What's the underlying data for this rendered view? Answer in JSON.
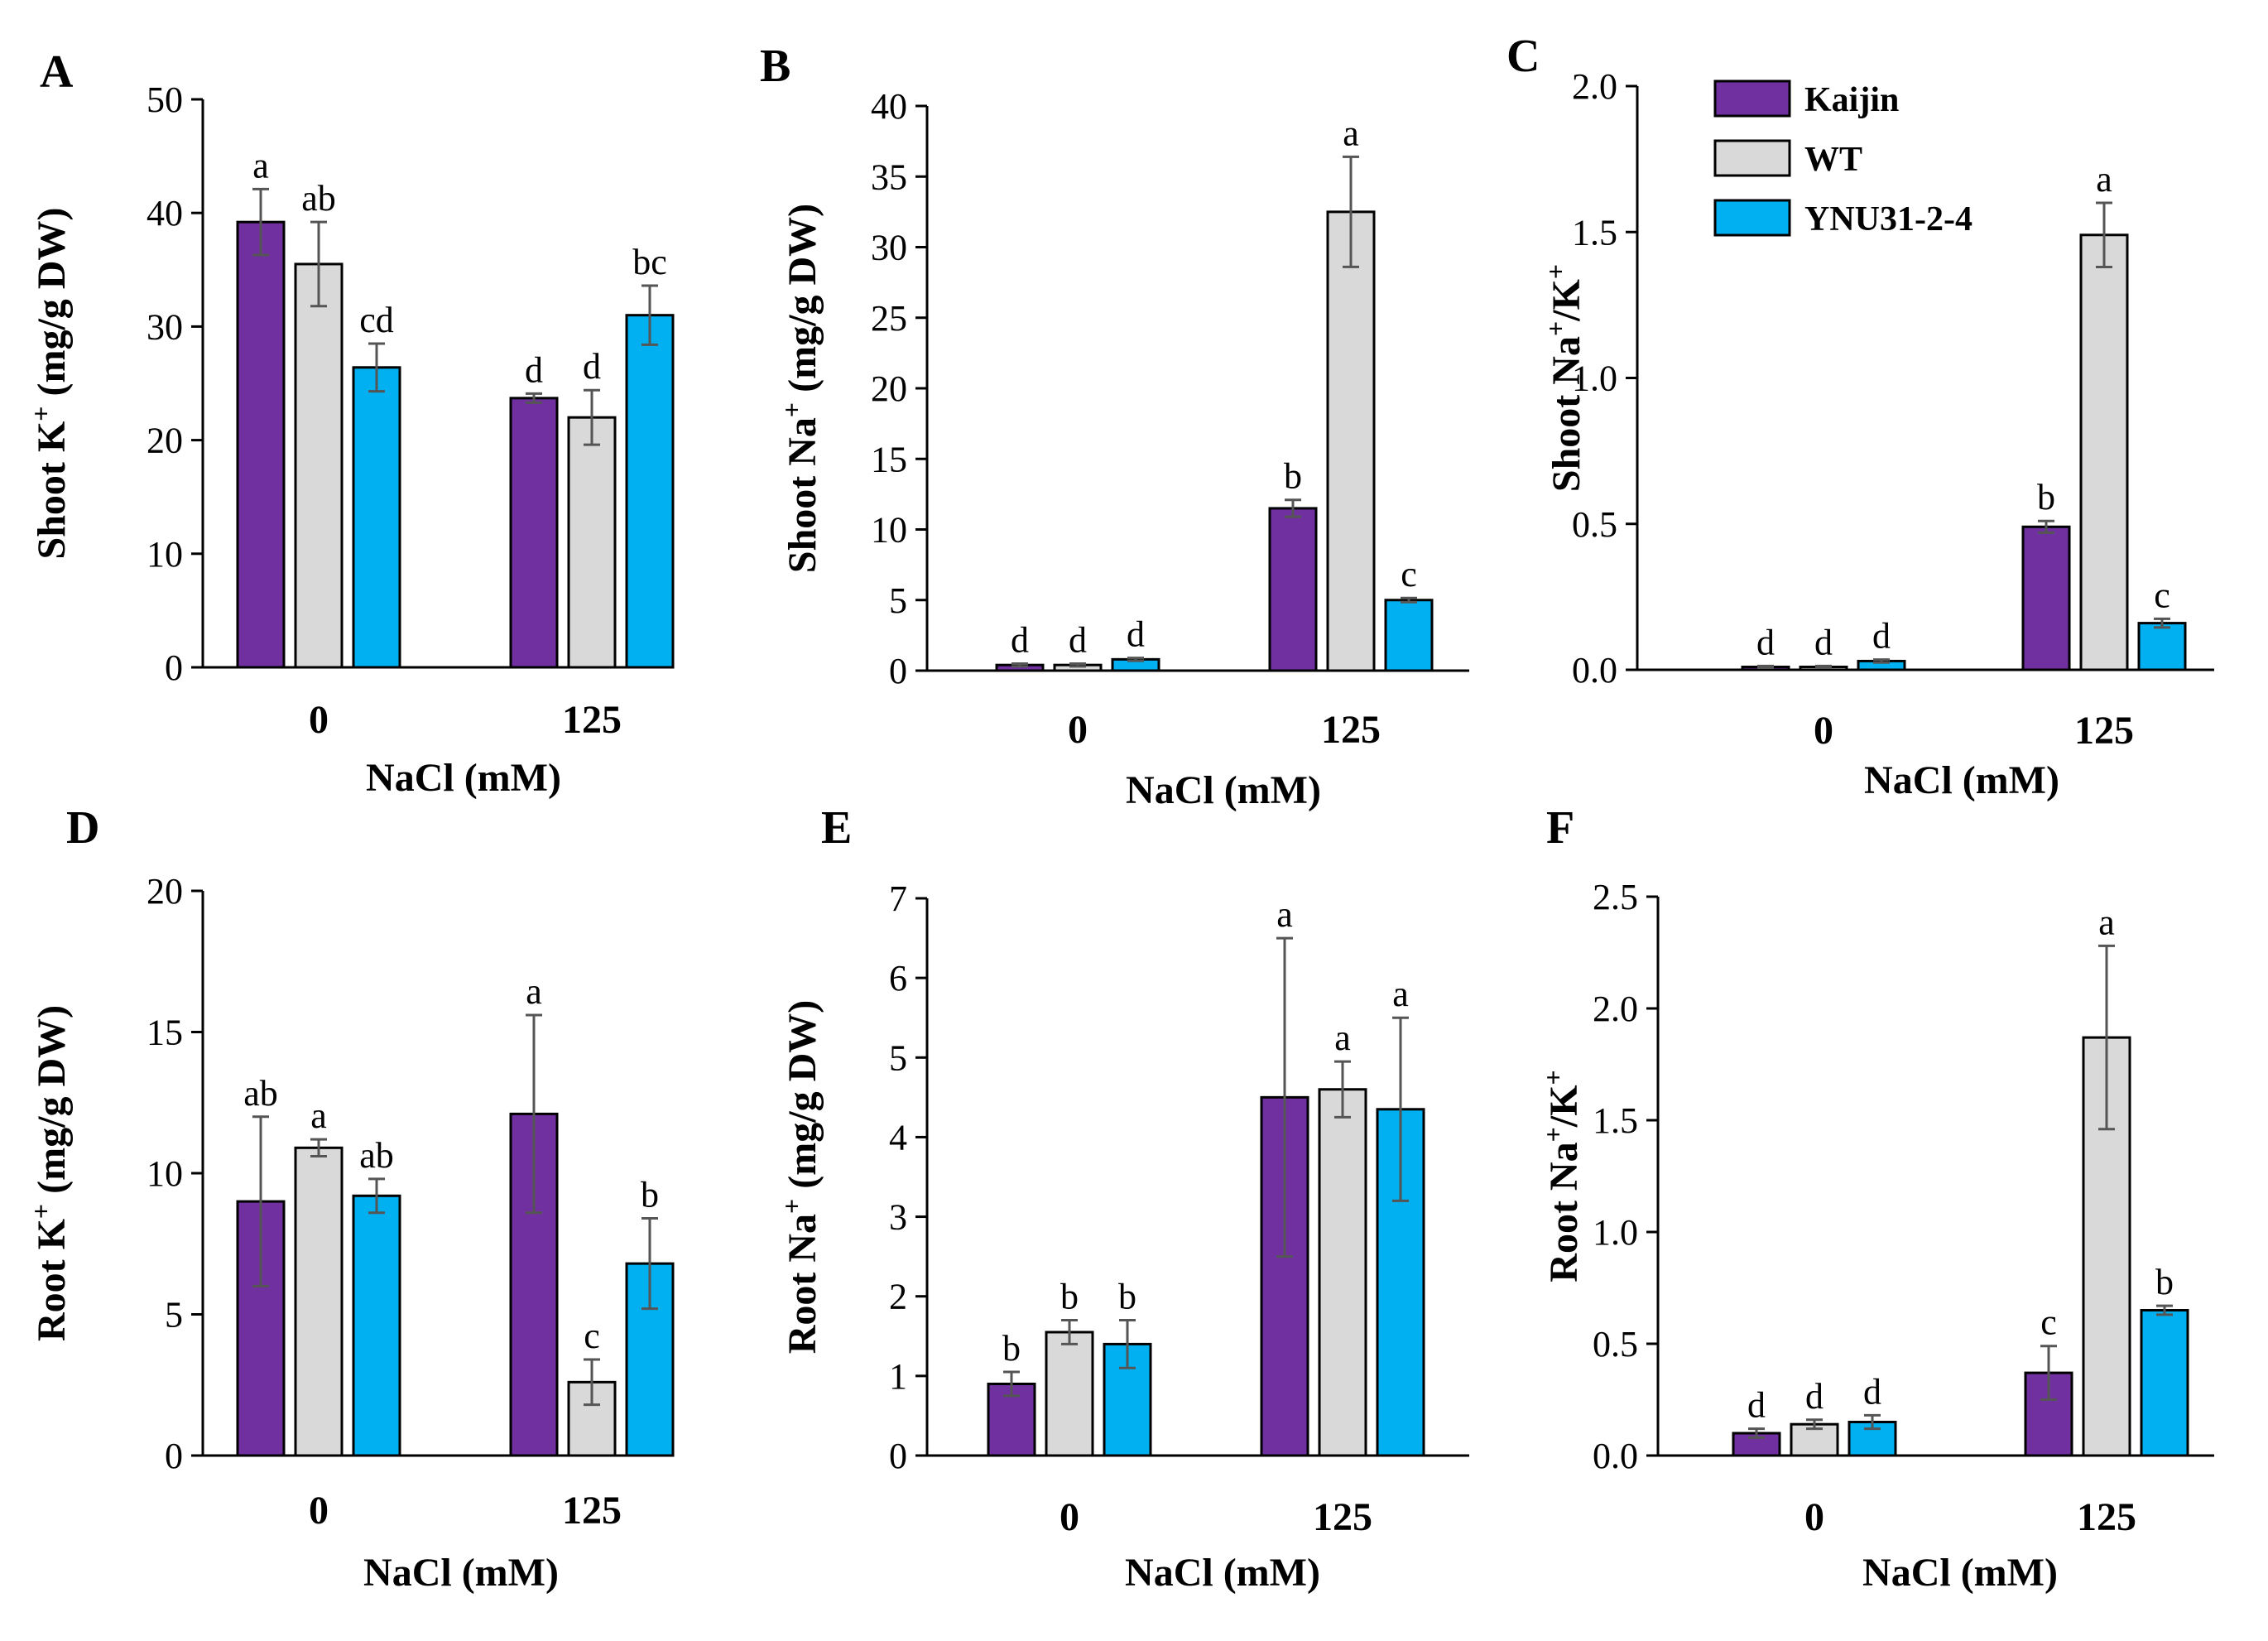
{
  "colors": {
    "Kaijin": "#7030a0",
    "WT": "#d9d9d9",
    "YNU31-2-4": "#00b0f0"
  },
  "legend": {
    "series": [
      "Kaijin",
      "WT",
      "YNU31-2-4"
    ]
  },
  "chart_data": [
    {
      "panel": "A",
      "type": "bar",
      "title": "",
      "ylabel_base": "Shoot K",
      "ylabel_sup": "+",
      "ylabel_unit": " (mg/g DW)",
      "xlabel": "NaCl (mM)",
      "categories": [
        "0",
        "125"
      ],
      "ylim": [
        0,
        50
      ],
      "yticks": [
        "0",
        "10",
        "20",
        "30",
        "40",
        "50"
      ],
      "series": [
        {
          "name": "Kaijin",
          "values": [
            39.2,
            23.7
          ],
          "errors": [
            2.9,
            0.4
          ],
          "letters": [
            "a",
            "d"
          ]
        },
        {
          "name": "WT",
          "values": [
            35.5,
            22.0
          ],
          "errors": [
            3.7,
            2.4
          ],
          "letters": [
            "ab",
            "d"
          ]
        },
        {
          "name": "YNU31-2-4",
          "values": [
            26.4,
            31.0
          ],
          "errors": [
            2.1,
            2.6
          ],
          "letters": [
            "cd",
            "bc"
          ]
        }
      ]
    },
    {
      "panel": "B",
      "type": "bar",
      "title": "",
      "ylabel_base": "Shoot Na",
      "ylabel_sup": "+",
      "ylabel_unit": " (mg/g DW)",
      "xlabel": "NaCl (mM)",
      "categories": [
        "0",
        "125"
      ],
      "ylim": [
        0,
        40
      ],
      "yticks": [
        "0",
        "5",
        "10",
        "15",
        "20",
        "25",
        "30",
        "35",
        "40"
      ],
      "series": [
        {
          "name": "Kaijin",
          "values": [
            0.4,
            11.5
          ],
          "errors": [
            0.1,
            0.6
          ],
          "letters": [
            "d",
            "b"
          ]
        },
        {
          "name": "WT",
          "values": [
            0.4,
            32.5
          ],
          "errors": [
            0.1,
            3.9
          ],
          "letters": [
            "d",
            "a"
          ]
        },
        {
          "name": "YNU31-2-4",
          "values": [
            0.8,
            5.0
          ],
          "errors": [
            0.1,
            0.15
          ],
          "letters": [
            "d",
            "c"
          ]
        }
      ]
    },
    {
      "panel": "C",
      "type": "bar",
      "title": "",
      "ylabel_base": "Shoot Na",
      "ylabel_sup": "+",
      "ylabel_unit": "/K",
      "ylabel_sup2": "+",
      "xlabel": "NaCl (mM)",
      "categories": [
        "0",
        "125"
      ],
      "ylim": [
        0,
        2.0
      ],
      "yticks": [
        "0.0",
        "0.5",
        "1.0",
        "1.5",
        "2.0"
      ],
      "series": [
        {
          "name": "Kaijin",
          "values": [
            0.01,
            0.49
          ],
          "errors": [
            0.003,
            0.02
          ],
          "letters": [
            "d",
            "b"
          ]
        },
        {
          "name": "WT",
          "values": [
            0.01,
            1.49
          ],
          "errors": [
            0.003,
            0.11
          ],
          "letters": [
            "d",
            "a"
          ]
        },
        {
          "name": "YNU31-2-4",
          "values": [
            0.03,
            0.16
          ],
          "errors": [
            0.005,
            0.015
          ],
          "letters": [
            "d",
            "c"
          ]
        }
      ]
    },
    {
      "panel": "D",
      "type": "bar",
      "title": "",
      "ylabel_base": "Root K",
      "ylabel_sup": "+",
      "ylabel_unit": " (mg/g DW)",
      "xlabel": "NaCl (mM)",
      "categories": [
        "0",
        "125"
      ],
      "ylim": [
        0,
        20
      ],
      "yticks": [
        "0",
        "5",
        "10",
        "15",
        "20"
      ],
      "series": [
        {
          "name": "Kaijin",
          "values": [
            9.0,
            12.1
          ],
          "errors": [
            3.0,
            3.5
          ],
          "letters": [
            "ab",
            "a"
          ]
        },
        {
          "name": "WT",
          "values": [
            10.9,
            2.6
          ],
          "errors": [
            0.3,
            0.8
          ],
          "letters": [
            "a",
            "c"
          ]
        },
        {
          "name": "YNU31-2-4",
          "values": [
            9.2,
            6.8
          ],
          "errors": [
            0.6,
            1.6
          ],
          "letters": [
            "ab",
            "b"
          ]
        }
      ]
    },
    {
      "panel": "E",
      "type": "bar",
      "title": "",
      "ylabel_base": "Root Na",
      "ylabel_sup": "+",
      "ylabel_unit": " (mg/g DW)",
      "xlabel": "NaCl (mM)",
      "categories": [
        "0",
        "125"
      ],
      "ylim": [
        0,
        7
      ],
      "yticks": [
        "0",
        "1",
        "2",
        "3",
        "4",
        "5",
        "6",
        "7"
      ],
      "series": [
        {
          "name": "Kaijin",
          "values": [
            0.9,
            4.5
          ],
          "errors": [
            0.15,
            2.0
          ],
          "letters": [
            "b",
            "a"
          ]
        },
        {
          "name": "WT",
          "values": [
            1.55,
            4.6
          ],
          "errors": [
            0.15,
            0.35
          ],
          "letters": [
            "b",
            "a"
          ]
        },
        {
          "name": "YNU31-2-4",
          "values": [
            1.4,
            4.35
          ],
          "errors": [
            0.3,
            1.15
          ],
          "letters": [
            "b",
            "a"
          ]
        }
      ]
    },
    {
      "panel": "F",
      "type": "bar",
      "title": "",
      "ylabel_base": "Root Na",
      "ylabel_sup": "+",
      "ylabel_unit": "/K",
      "ylabel_sup2": "+",
      "xlabel": "NaCl (mM)",
      "categories": [
        "0",
        "125"
      ],
      "ylim": [
        0,
        2.5
      ],
      "yticks": [
        "0.0",
        "0.5",
        "1.0",
        "1.5",
        "2.0",
        "2.5"
      ],
      "series": [
        {
          "name": "Kaijin",
          "values": [
            0.1,
            0.37
          ],
          "errors": [
            0.02,
            0.12
          ],
          "letters": [
            "d",
            "c"
          ]
        },
        {
          "name": "WT",
          "values": [
            0.14,
            1.87
          ],
          "errors": [
            0.02,
            0.41
          ],
          "letters": [
            "d",
            "a"
          ]
        },
        {
          "name": "YNU31-2-4",
          "values": [
            0.15,
            0.65
          ],
          "errors": [
            0.03,
            0.02
          ],
          "letters": [
            "d",
            "b"
          ]
        }
      ]
    }
  ]
}
